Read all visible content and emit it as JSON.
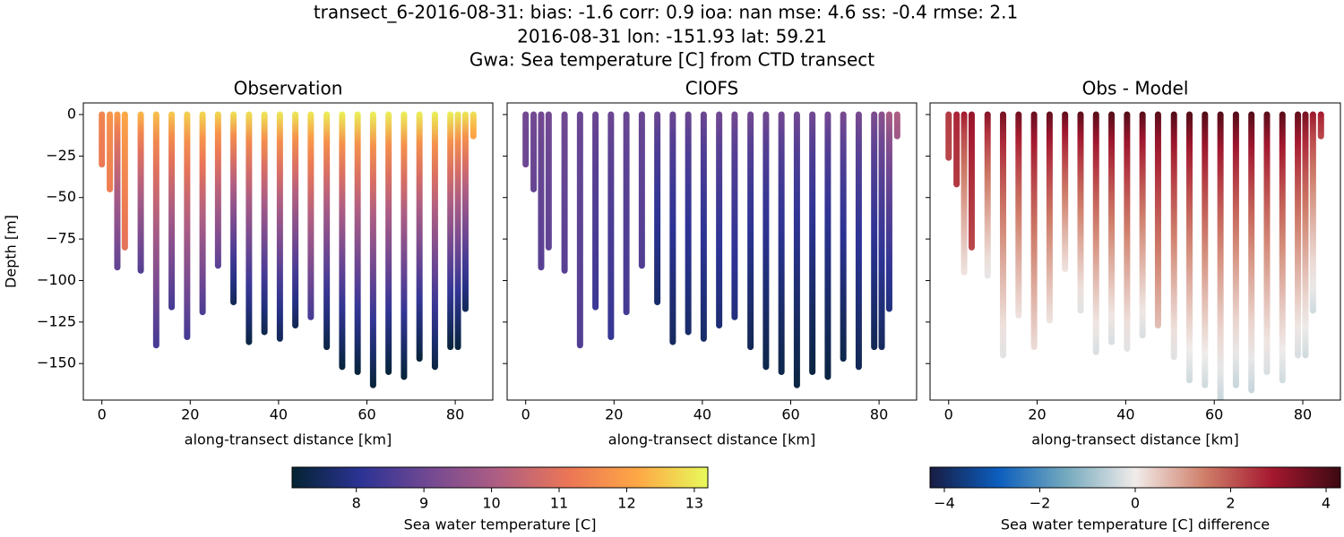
{
  "title": [
    "transect_6-2016-08-31: bias: -1.6  corr: 0.9  ioa: nan  mse: 4.6  ss: -0.4  rmse: 2.1",
    "2016-08-31 lon: -151.93 lat: 59.21",
    "Gwa: Sea temperature [C] from CTD transect"
  ],
  "chart_data": [
    {
      "type": "profile",
      "title": "Observation",
      "xlabel": "along-transect distance [km]",
      "ylabel": "Depth [m]",
      "colorbar": 0,
      "x": [
        0,
        1.8,
        3.5,
        5.2,
        8.8,
        12.3,
        15.8,
        19.3,
        22.8,
        26.3,
        29.8,
        33.3,
        36.8,
        40.3,
        43.8,
        47.3,
        50.9,
        54.4,
        57.9,
        61.4,
        64.9,
        68.4,
        71.9,
        75.4,
        78.9,
        80.6,
        82.3,
        84.1
      ],
      "depth": [
        -30,
        -45,
        -92,
        -80,
        -94,
        -139,
        -116,
        -134,
        -119,
        -91,
        -113,
        -137,
        -131,
        -135,
        -127,
        -122,
        -140,
        -152,
        -155,
        -163,
        -155,
        -158,
        -147,
        -152,
        -140,
        -140,
        -117,
        -13
      ],
      "surface": [
        11.5,
        11.8,
        12.0,
        12.2,
        12.4,
        12.5,
        12.6,
        12.7,
        12.8,
        12.8,
        12.9,
        12.9,
        13.0,
        13.0,
        13.0,
        13.0,
        13.1,
        13.1,
        13.1,
        13.1,
        13.1,
        13.1,
        13.1,
        13.1,
        13.1,
        13.0,
        13.0,
        13.0
      ],
      "bottom": [
        11.2,
        11.3,
        8.8,
        11.0,
        8.6,
        8.4,
        8.4,
        8.4,
        8.5,
        8.7,
        7.4,
        7.2,
        7.3,
        7.4,
        7.4,
        8.4,
        7.2,
        7.1,
        7.1,
        7.1,
        7.1,
        7.1,
        7.1,
        7.2,
        7.1,
        7.1,
        7.4,
        12.0
      ],
      "xlim": [
        -4.2,
        88.5
      ],
      "ylim": [
        -172,
        7
      ],
      "xticks": [
        0,
        20,
        40,
        60,
        80
      ],
      "yticks": [
        {
          "value": 0,
          "label": "0"
        },
        {
          "value": -25,
          "label": "−25"
        },
        {
          "value": -50,
          "label": "−50"
        },
        {
          "value": -75,
          "label": "−75"
        },
        {
          "value": -100,
          "label": "−100"
        },
        {
          "value": -125,
          "label": "−125"
        },
        {
          "value": -150,
          "label": "−150"
        }
      ]
    },
    {
      "type": "profile",
      "title": "CIOFS",
      "xlabel": "along-transect distance [km]",
      "colorbar": 0,
      "x": [
        0,
        1.8,
        3.5,
        5.2,
        8.8,
        12.3,
        15.8,
        19.3,
        22.8,
        26.3,
        29.8,
        33.3,
        36.8,
        40.3,
        43.8,
        47.3,
        50.9,
        54.4,
        57.9,
        61.4,
        64.9,
        68.4,
        71.9,
        75.4,
        78.9,
        80.6,
        82.3,
        84.1
      ],
      "depth": [
        -30,
        -45,
        -92,
        -80,
        -94,
        -139,
        -116,
        -134,
        -119,
        -91,
        -113,
        -137,
        -131,
        -135,
        -127,
        -122,
        -140,
        -152,
        -155,
        -163,
        -155,
        -158,
        -147,
        -152,
        -140,
        -140,
        -117,
        -13
      ],
      "surface": [
        9.1,
        9.1,
        9.1,
        9.1,
        9.1,
        9.0,
        9.0,
        9.0,
        9.0,
        9.0,
        9.0,
        9.0,
        9.0,
        9.0,
        9.1,
        9.1,
        9.1,
        9.1,
        9.1,
        9.1,
        9.1,
        9.1,
        9.2,
        9.2,
        9.3,
        9.5,
        10.0,
        10.1
      ],
      "bottom": [
        9.0,
        8.9,
        8.7,
        8.8,
        8.7,
        8.6,
        8.3,
        8.2,
        8.4,
        8.6,
        7.6,
        7.5,
        7.6,
        7.6,
        7.7,
        7.8,
        7.4,
        7.3,
        7.3,
        7.2,
        7.2,
        7.2,
        7.3,
        7.4,
        7.4,
        7.5,
        7.8,
        9.8
      ],
      "xlim": [
        -4.2,
        88.5
      ],
      "ylim": [
        -172,
        7
      ],
      "xticks": [
        0,
        20,
        40,
        60,
        80
      ],
      "yticks": [
        0,
        -25,
        -50,
        -75,
        -100,
        -125,
        -150
      ]
    },
    {
      "type": "profile",
      "title": "Obs - Model",
      "xlabel": "along-transect distance [km]",
      "colorbar": 1,
      "x": [
        0,
        1.8,
        3.5,
        5.2,
        8.8,
        12.3,
        15.8,
        19.3,
        22.8,
        26.3,
        29.8,
        33.3,
        36.8,
        40.3,
        43.8,
        47.3,
        50.9,
        54.4,
        57.9,
        61.4,
        64.9,
        68.4,
        71.9,
        75.4,
        78.9,
        80.6,
        82.3,
        84.1
      ],
      "depth": [
        -26,
        -42,
        -95,
        -80,
        -97,
        -145,
        -121,
        -140,
        -124,
        -93,
        -118,
        -143,
        -137,
        -141,
        -133,
        -127,
        -146,
        -160,
        -163,
        -172,
        -163,
        -166,
        -155,
        -160,
        -145,
        -145,
        -118,
        -13
      ],
      "surface": [
        2.4,
        2.7,
        2.9,
        3.1,
        3.3,
        3.5,
        3.6,
        3.7,
        3.8,
        3.8,
        3.9,
        3.9,
        4.0,
        4.0,
        3.9,
        3.9,
        4.0,
        4.0,
        4.0,
        4.0,
        4.0,
        4.0,
        3.9,
        3.9,
        3.8,
        3.5,
        3.0,
        2.9
      ],
      "bottom": [
        2.2,
        2.4,
        0.1,
        2.2,
        -0.1,
        -0.2,
        0.1,
        0.2,
        0.1,
        0.1,
        -0.2,
        -0.3,
        -0.3,
        -0.2,
        -0.3,
        0.6,
        -0.2,
        -0.4,
        -0.4,
        -0.5,
        -0.5,
        -0.5,
        -0.3,
        -0.4,
        -0.3,
        -0.4,
        -0.4,
        2.2
      ],
      "xlim": [
        -4.2,
        88.5
      ],
      "ylim": [
        -172,
        7
      ],
      "xticks": [
        0,
        20,
        40,
        60,
        80
      ],
      "yticks": [
        0,
        -25,
        -50,
        -75,
        -100,
        -125,
        -150
      ]
    }
  ],
  "colorbars": [
    {
      "label": "Sea water temperature [C]",
      "lim": [
        7.05,
        13.2
      ],
      "ticks": [
        8,
        9,
        10,
        11,
        12,
        13
      ],
      "colors": [
        "#042333",
        "#2c3395",
        "#744992",
        "#b15f82",
        "#eb7655",
        "#fea845",
        "#e8fa5b"
      ]
    },
    {
      "label": "Sea water temperature [C] difference",
      "lim": [
        -4.3,
        4.3
      ],
      "ticks": [
        {
          "value": -4,
          "label": "−4"
        },
        {
          "value": -2,
          "label": "−2"
        },
        0,
        2,
        4
      ],
      "colors": [
        "#181c43",
        "#0c5ebe",
        "#75aabe",
        "#f1ecea",
        "#d0806b",
        "#a5182f",
        "#3c0912"
      ]
    }
  ]
}
